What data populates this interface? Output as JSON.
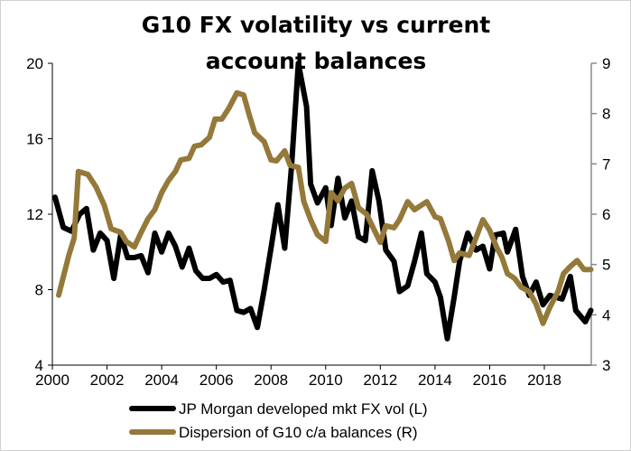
{
  "chart_data": {
    "type": "line",
    "title": "G10 FX volatility vs current account balances",
    "x_ticks": [
      "2000",
      "2002",
      "2004",
      "2006",
      "2008",
      "2010",
      "2012",
      "2014",
      "2016",
      "2018"
    ],
    "xlim": [
      2000,
      2019.7
    ],
    "y_left": {
      "ticks": [
        "4",
        "8",
        "12",
        "16",
        "20"
      ],
      "ylim": [
        4,
        20
      ]
    },
    "y_right": {
      "ticks": [
        "3",
        "4",
        "5",
        "6",
        "7",
        "8",
        "9"
      ],
      "ylim": [
        3,
        9
      ]
    },
    "grid": false,
    "legend_placement": "bottom",
    "series": [
      {
        "name": "JP Morgan developed mkt FX vol (L)",
        "axis": "left",
        "color": "#000000",
        "x": [
          2000.1,
          2000.4,
          2000.7,
          2001.0,
          2001.25,
          2001.5,
          2001.75,
          2002.0,
          2002.25,
          2002.5,
          2002.75,
          2003.0,
          2003.25,
          2003.5,
          2003.75,
          2004.0,
          2004.25,
          2004.5,
          2004.75,
          2005.0,
          2005.25,
          2005.5,
          2005.75,
          2006.0,
          2006.25,
          2006.5,
          2006.75,
          2007.0,
          2007.25,
          2007.5,
          2007.75,
          2008.0,
          2008.25,
          2008.5,
          2008.75,
          2009.0,
          2009.3,
          2009.45,
          2009.7,
          2010.0,
          2010.2,
          2010.45,
          2010.7,
          2010.95,
          2011.2,
          2011.45,
          2011.7,
          2011.95,
          2012.2,
          2012.5,
          2012.7,
          2013.0,
          2013.25,
          2013.5,
          2013.7,
          2014.0,
          2014.2,
          2014.45,
          2014.7,
          2014.9,
          2015.2,
          2015.5,
          2015.75,
          2016.0,
          2016.2,
          2016.5,
          2016.65,
          2016.95,
          2017.2,
          2017.45,
          2017.7,
          2017.95,
          2018.2,
          2018.65,
          2018.95,
          2019.15,
          2019.5,
          2019.7
        ],
        "values": [
          12.9,
          11.3,
          11.1,
          12.0,
          12.3,
          10.1,
          11.0,
          10.6,
          8.6,
          10.9,
          9.7,
          9.7,
          9.8,
          8.9,
          11.0,
          10.0,
          11.0,
          10.3,
          9.2,
          10.2,
          9.0,
          8.6,
          8.6,
          8.8,
          8.4,
          8.5,
          6.9,
          6.8,
          7.0,
          6.0,
          8.0,
          10.2,
          12.5,
          10.2,
          14.5,
          20.0,
          17.7,
          13.6,
          12.6,
          13.4,
          11.4,
          13.9,
          11.8,
          12.7,
          10.8,
          10.6,
          14.3,
          12.7,
          10.1,
          9.5,
          7.9,
          8.2,
          9.5,
          11.0,
          8.85,
          8.4,
          7.6,
          5.4,
          7.6,
          9.5,
          11.0,
          10.1,
          10.3,
          9.1,
          10.9,
          11.0,
          10.0,
          11.2,
          8.7,
          7.7,
          8.4,
          7.2,
          7.7,
          7.5,
          8.7,
          6.9,
          6.3,
          6.9
        ]
      },
      {
        "name": "Dispersion of G10 c/a balances (R)",
        "axis": "right",
        "color": "#94793A",
        "x": [
          2000.23,
          2000.6,
          2000.8,
          2000.95,
          2001.3,
          2001.6,
          2001.9,
          2002.15,
          2002.5,
          2002.7,
          2003.0,
          2003.25,
          2003.5,
          2003.75,
          2004.0,
          2004.25,
          2004.5,
          2004.7,
          2005.0,
          2005.2,
          2005.45,
          2005.75,
          2005.95,
          2006.2,
          2006.45,
          2006.75,
          2007.0,
          2007.2,
          2007.4,
          2007.75,
          2008.0,
          2008.2,
          2008.5,
          2008.7,
          2009.0,
          2009.2,
          2009.45,
          2009.7,
          2010.0,
          2010.2,
          2010.45,
          2010.7,
          2010.95,
          2011.2,
          2011.5,
          2011.7,
          2012.0,
          2012.2,
          2012.5,
          2012.7,
          2013.0,
          2013.25,
          2013.7,
          2014.0,
          2014.2,
          2014.5,
          2014.7,
          2014.9,
          2015.25,
          2015.5,
          2015.75,
          2016.0,
          2016.25,
          2016.45,
          2016.65,
          2016.9,
          2017.15,
          2017.45,
          2017.7,
          2017.95,
          2018.2,
          2018.5,
          2018.7,
          2018.95,
          2019.2,
          2019.45,
          2019.7
        ],
        "values": [
          4.39,
          5.18,
          5.53,
          6.85,
          6.79,
          6.54,
          6.18,
          5.71,
          5.64,
          5.46,
          5.35,
          5.64,
          5.91,
          6.09,
          6.43,
          6.67,
          6.85,
          7.08,
          7.11,
          7.35,
          7.38,
          7.53,
          7.89,
          7.89,
          8.1,
          8.41,
          8.37,
          7.98,
          7.62,
          7.44,
          7.08,
          7.06,
          7.26,
          6.97,
          6.93,
          6.25,
          5.89,
          5.59,
          5.46,
          6.43,
          6.27,
          6.52,
          6.61,
          6.13,
          6.0,
          5.77,
          5.44,
          5.77,
          5.73,
          5.89,
          6.25,
          6.09,
          6.25,
          5.95,
          5.91,
          5.46,
          5.08,
          5.23,
          5.18,
          5.53,
          5.89,
          5.68,
          5.35,
          5.14,
          4.82,
          4.73,
          4.55,
          4.46,
          4.21,
          3.83,
          4.15,
          4.46,
          4.82,
          4.96,
          5.08,
          4.9,
          4.9
        ]
      }
    ]
  }
}
